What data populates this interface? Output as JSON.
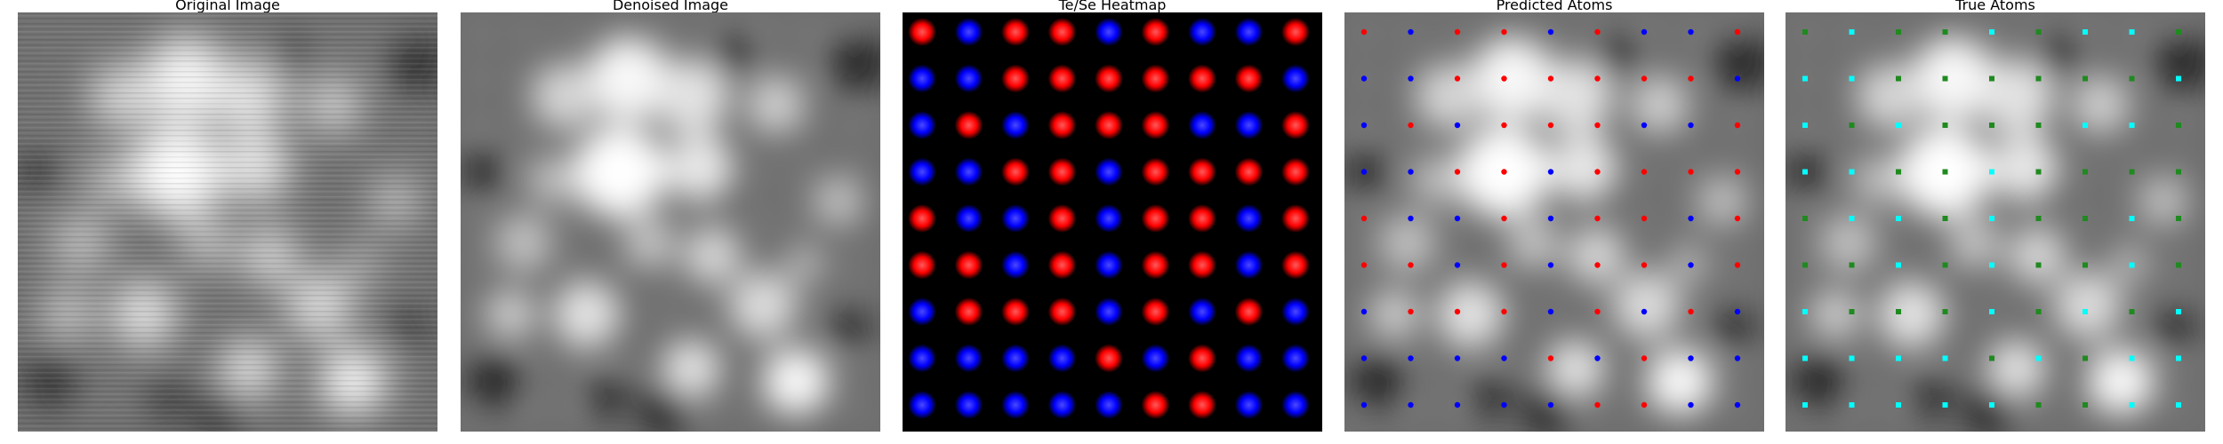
{
  "figure": {
    "panels": [
      {
        "title": "Original Image",
        "kind": "original"
      },
      {
        "title": "Denoised Image",
        "kind": "denoised"
      },
      {
        "title": "Te/Se Heatmap",
        "kind": "heatmap"
      },
      {
        "title": "Predicted Atoms",
        "kind": "predicted"
      },
      {
        "title": "True Atoms",
        "kind": "true"
      }
    ]
  },
  "lattice": {
    "rows": [
      [
        "R",
        "B",
        "R",
        "R",
        "B",
        "R",
        "B",
        "B",
        "R"
      ],
      [
        "B",
        "B",
        "R",
        "R",
        "R",
        "R",
        "R",
        "R",
        "B"
      ],
      [
        "B",
        "R",
        "B",
        "R",
        "R",
        "R",
        "B",
        "B",
        "R"
      ],
      [
        "B",
        "B",
        "R",
        "R",
        "B",
        "R",
        "R",
        "R",
        "R"
      ],
      [
        "R",
        "B",
        "B",
        "R",
        "B",
        "R",
        "R",
        "B",
        "R"
      ],
      [
        "R",
        "R",
        "B",
        "R",
        "B",
        "R",
        "R",
        "B",
        "R"
      ],
      [
        "B",
        "R",
        "R",
        "R",
        "B",
        "R",
        "B",
        "R",
        "B"
      ],
      [
        "B",
        "B",
        "B",
        "B",
        "R",
        "B",
        "R",
        "B",
        "B"
      ],
      [
        "B",
        "B",
        "B",
        "B",
        "B",
        "R",
        "R",
        "B",
        "B"
      ]
    ]
  },
  "colors": {
    "te": "#ff0000",
    "se": "#0000ff",
    "true_te": "#00ffff",
    "true_se": "#1f8a1f",
    "heat_background": "#000000"
  }
}
